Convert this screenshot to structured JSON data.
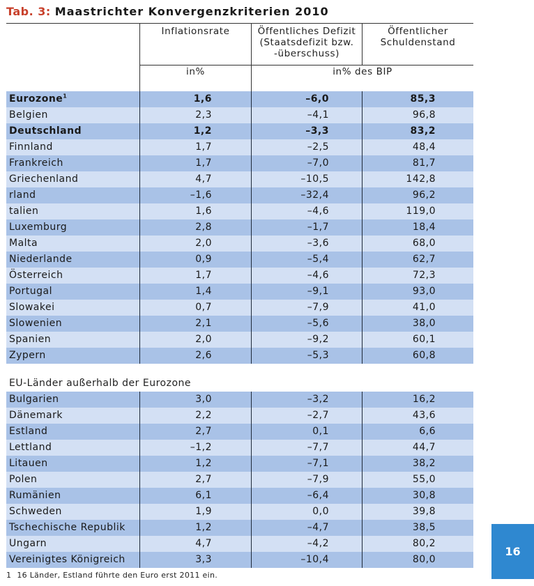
{
  "title": {
    "label": "Tab. 3:",
    "text": "Maastrichter Konvergenzkriterien 2010"
  },
  "header": {
    "col1": "Inflationsrate",
    "col2": [
      "Öffentliches Defizit",
      "(Staatsdefizit bzw.",
      "-überschuss)"
    ],
    "col3": [
      "Öffentlicher",
      "Schuldenstand"
    ],
    "unit1": "in%",
    "unit2": "in% des BIP"
  },
  "eurozone_rows": [
    {
      "country": "Eurozone",
      "sup": "1",
      "inflation": "1,6",
      "deficit": "–6,0",
      "debt": "85,3",
      "bold": true
    },
    {
      "country": "Belgien",
      "inflation": "2,3",
      "deficit": "–4,1",
      "debt": "96,8"
    },
    {
      "country": "Deutschland",
      "inflation": "1,2",
      "deficit": "–3,3",
      "debt": "83,2",
      "bold": true
    },
    {
      "country": "Finnland",
      "inflation": "1,7",
      "deficit": "–2,5",
      "debt": "48,4"
    },
    {
      "country": "Frankreich",
      "inflation": "1,7",
      "deficit": "–7,0",
      "debt": "81,7"
    },
    {
      "country": "Griechenland",
      "inflation": "4,7",
      "deficit": "–10,5",
      "debt": "142,8"
    },
    {
      "country": " rland",
      "inflation": "–1,6",
      "deficit": "–32,4",
      "debt": "96,2"
    },
    {
      "country": " talien",
      "inflation": "1,6",
      "deficit": "–4,6",
      "debt": "119,0"
    },
    {
      "country": "Luxemburg",
      "inflation": "2,8",
      "deficit": "–1,7",
      "debt": "18,4"
    },
    {
      "country": "Malta",
      "inflation": "2,0",
      "deficit": "–3,6",
      "debt": "68,0"
    },
    {
      "country": "Niederlande",
      "inflation": "0,9",
      "deficit": "–5,4",
      "debt": "62,7"
    },
    {
      "country": "Österreich",
      "inflation": "1,7",
      "deficit": "–4,6",
      "debt": "72,3"
    },
    {
      "country": "Portugal",
      "inflation": "1,4",
      "deficit": "–9,1",
      "debt": "93,0"
    },
    {
      "country": "Slowakei",
      "inflation": "0,7",
      "deficit": "–7,9",
      "debt": "41,0"
    },
    {
      "country": "Slowenien",
      "inflation": "2,1",
      "deficit": "–5,6",
      "debt": "38,0"
    },
    {
      "country": "Spanien",
      "inflation": "2,0",
      "deficit": "–9,2",
      "debt": "60,1"
    },
    {
      "country": "Zypern",
      "inflation": "2,6",
      "deficit": "–5,3",
      "debt": "60,8"
    }
  ],
  "non_eurozone_label": "EU-Länder außerhalb der Eurozone",
  "non_eurozone_rows": [
    {
      "country": "Bulgarien",
      "inflation": "3,0",
      "deficit": "–3,2",
      "debt": "16,2"
    },
    {
      "country": "Dänemark",
      "inflation": "2,2",
      "deficit": "–2,7",
      "debt": "43,6"
    },
    {
      "country": "Estland",
      "inflation": "2,7",
      "deficit": "0,1",
      "debt": "6,6"
    },
    {
      "country": "Lettland",
      "inflation": "–1,2",
      "deficit": "–7,7",
      "debt": "44,7"
    },
    {
      "country": "Litauen",
      "inflation": "1,2",
      "deficit": "–7,1",
      "debt": "38,2"
    },
    {
      "country": "Polen",
      "inflation": "2,7",
      "deficit": "–7,9",
      "debt": "55,0"
    },
    {
      "country": "Rumänien",
      "inflation": "6,1",
      "deficit": "–6,4",
      "debt": "30,8"
    },
    {
      "country": "Schweden",
      "inflation": "1,9",
      "deficit": "0,0",
      "debt": "39,8"
    },
    {
      "country": "Tschechische Republik",
      "inflation": "1,2",
      "deficit": "–4,7",
      "debt": "38,5"
    },
    {
      "country": "Ungarn",
      "inflation": "4,7",
      "deficit": "–4,2",
      "debt": "80,2"
    },
    {
      "country": "Vereinigtes Königreich",
      "inflation": "3,3",
      "deficit": "–10,4",
      "debt": "80,0"
    }
  ],
  "footnote": {
    "number": "1",
    "text": "16 Länder, Estland führte den Euro erst 2011 ein."
  },
  "page_number": "16",
  "colors": {
    "row_dark": "#a9c2e7",
    "row_light": "#d3e0f4",
    "title_label": "#c8412c",
    "page_box": "#2f88d0"
  }
}
